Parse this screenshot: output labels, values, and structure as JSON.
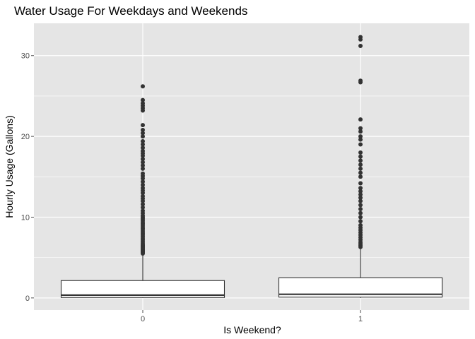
{
  "chart_data": {
    "type": "boxplot",
    "title": "Water Usage For Weekdays and Weekends",
    "xlabel": "Is Weekend?",
    "ylabel": "Hourly Usage (Gallons)",
    "categories": [
      "0",
      "1"
    ],
    "ylim": [
      -1.5,
      34
    ],
    "yticks": [
      0,
      10,
      20,
      30
    ],
    "grid": true,
    "colors": {
      "panel": "#e5e5e5",
      "grid": "#ffffff",
      "box_fill": "#ffffff",
      "box_stroke": "#333333",
      "outlier": "#333333",
      "tick": "#4d4d4d"
    },
    "boxes": [
      {
        "category": "0",
        "min": 0,
        "q1": 0.05,
        "median": 0.35,
        "q3": 2.15,
        "whisker_high": 5.4,
        "outliers": [
          5.5,
          5.6,
          5.7,
          5.8,
          5.9,
          6.0,
          6.1,
          6.2,
          6.3,
          6.4,
          6.5,
          6.6,
          6.8,
          7.0,
          7.2,
          7.4,
          7.6,
          7.8,
          8.0,
          8.2,
          8.4,
          8.6,
          8.8,
          9.0,
          9.2,
          9.4,
          9.6,
          9.8,
          10.0,
          10.2,
          10.5,
          10.8,
          11.2,
          11.6,
          12.0,
          12.3,
          12.6,
          13.0,
          13.3,
          13.6,
          14.0,
          14.4,
          14.8,
          15.1,
          15.4,
          16.0,
          16.4,
          16.8,
          17.2,
          17.6,
          17.9,
          18.2,
          18.6,
          19.0,
          19.4,
          20.0,
          20.4,
          20.8,
          21.4,
          23.2,
          23.5,
          23.8,
          24.1,
          24.5,
          26.2
        ]
      },
      {
        "category": "1",
        "min": 0,
        "q1": 0.1,
        "median": 0.45,
        "q3": 2.5,
        "whisker_high": 6.2,
        "outliers": [
          6.3,
          6.5,
          6.7,
          6.9,
          7.2,
          7.5,
          7.8,
          8.1,
          8.4,
          8.7,
          9.0,
          9.5,
          10.0,
          10.5,
          11.0,
          11.5,
          12.0,
          12.4,
          12.8,
          13.2,
          13.6,
          14.2,
          15.0,
          15.5,
          16.0,
          16.5,
          17.0,
          17.5,
          18.0,
          19.0,
          19.6,
          20.0,
          20.6,
          21.0,
          22.1,
          26.7,
          26.9,
          31.2,
          32.0,
          32.3
        ]
      }
    ]
  }
}
